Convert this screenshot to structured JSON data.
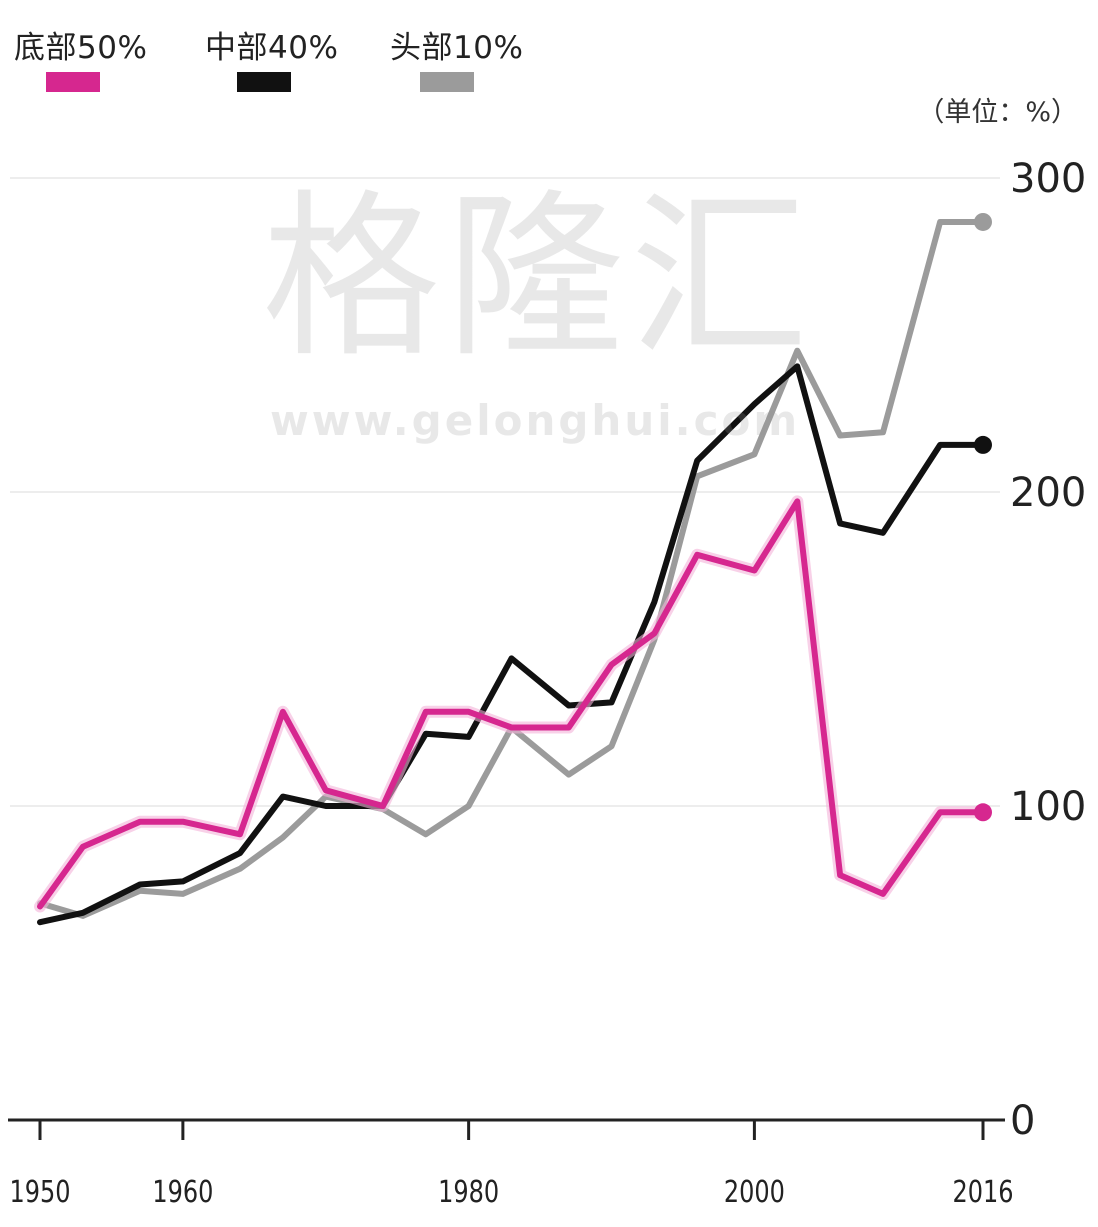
{
  "legend": {
    "items": [
      {
        "label": "底部50%",
        "color": "#d6278f"
      },
      {
        "label": "中部40%",
        "color": "#111111"
      },
      {
        "label": "头部10%",
        "color": "#9b9b9b"
      }
    ]
  },
  "unit_label": "（单位：%）",
  "watermark": {
    "main": "格隆汇",
    "url": "www.gelonghui.com"
  },
  "chart_data": {
    "type": "line",
    "xlim": [
      1950,
      2016
    ],
    "ylim": [
      0,
      300
    ],
    "y_ticks": [
      0,
      100,
      200,
      300
    ],
    "x_ticks": [
      1950,
      1960,
      1980,
      2000,
      2016
    ],
    "x_tick_labels": [
      "1950",
      "1960",
      "1980",
      "2000",
      "2016"
    ],
    "y_tick_labels": [
      "0",
      "100",
      "200",
      "300"
    ],
    "grid": true,
    "legend_position": "top-left",
    "x": [
      1950,
      1953,
      1957,
      1960,
      1964,
      1967,
      1970,
      1974,
      1977,
      1980,
      1983,
      1987,
      1990,
      1993,
      1996,
      2000,
      2003,
      2006,
      2009,
      2013,
      2016
    ],
    "series": [
      {
        "name": "底部50%",
        "color": "#d6278f",
        "values": [
          68,
          87,
          95,
          95,
          91,
          130,
          105,
          100,
          130,
          130,
          125,
          125,
          145,
          155,
          180,
          175,
          197,
          78,
          72,
          98,
          98
        ],
        "end_marker": true
      },
      {
        "name": "中部40%",
        "color": "#111111",
        "values": [
          63,
          66,
          75,
          76,
          85,
          103,
          100,
          100,
          123,
          122,
          147,
          132,
          133,
          165,
          210,
          228,
          240,
          190,
          187,
          215,
          215
        ],
        "end_marker": true
      },
      {
        "name": "头部10%",
        "color": "#9b9b9b",
        "values": [
          69,
          65,
          73,
          72,
          80,
          90,
          103,
          99,
          91,
          100,
          125,
          110,
          119,
          153,
          205,
          212,
          245,
          218,
          219,
          286,
          286
        ],
        "end_marker": true
      }
    ]
  }
}
